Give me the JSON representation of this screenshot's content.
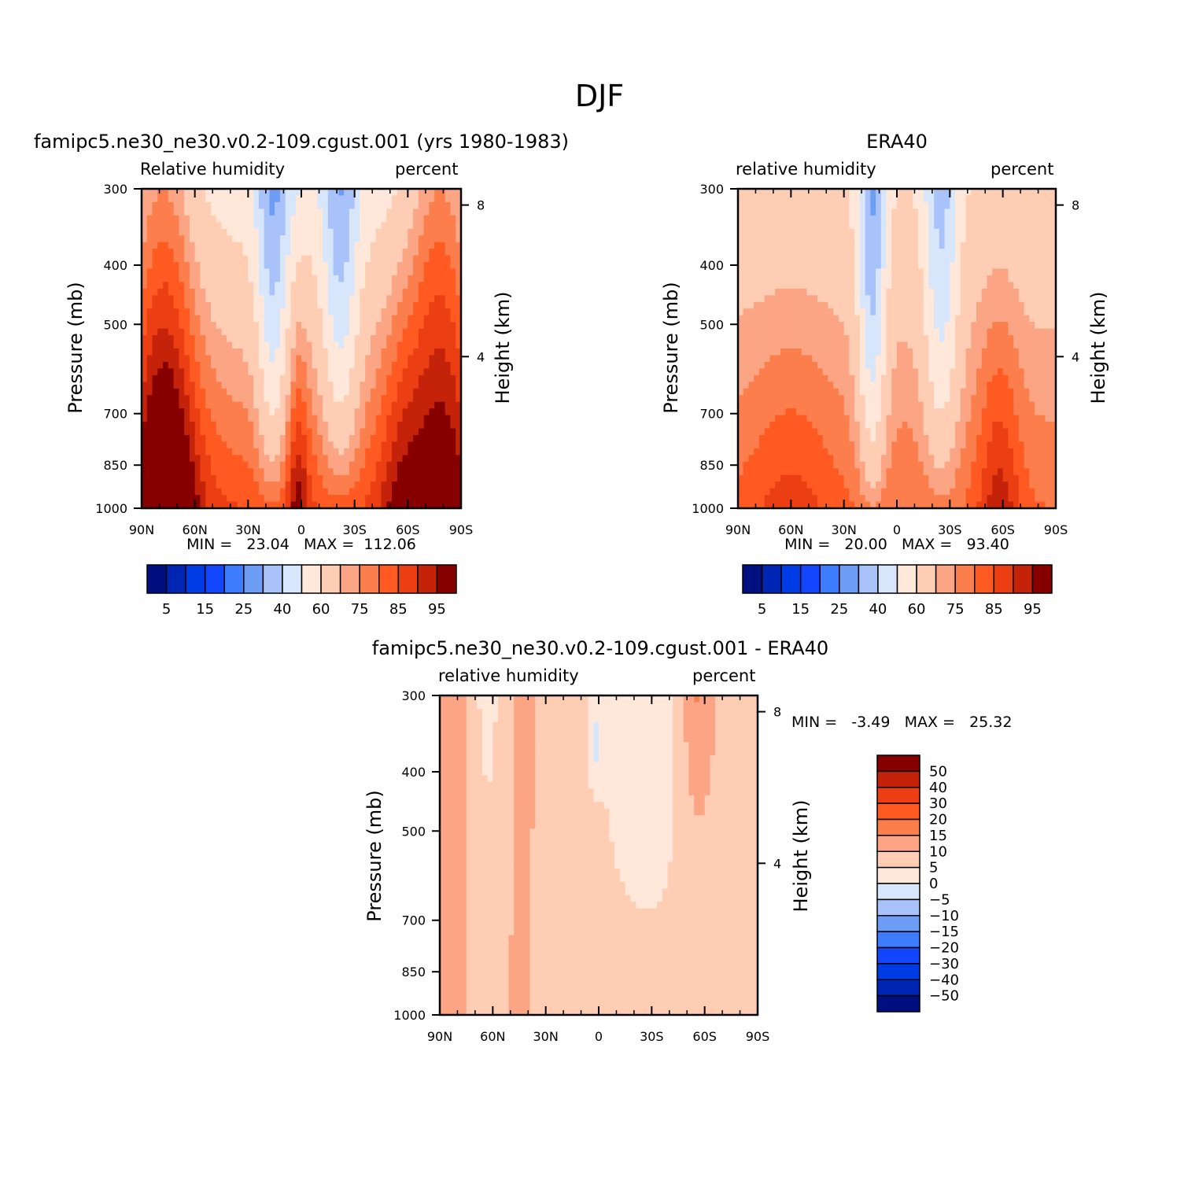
{
  "figure_title": "DJF",
  "colors": {
    "rh_palette": [
      "#000f7f",
      "#0024b4",
      "#003ce6",
      "#1446ff",
      "#3d7bff",
      "#6d9df5",
      "#a9c3fa",
      "#d7e6fb",
      "#ffe8d9",
      "#ffcdb4",
      "#fca584",
      "#fc7e4c",
      "#ff5a22",
      "#ec3e13",
      "#c4230a",
      "#870000"
    ],
    "diff_palette": [
      "#000f7f",
      "#0024b4",
      "#003ce6",
      "#1446ff",
      "#3d7bff",
      "#6d9df5",
      "#a9c3fa",
      "#d7e6fb",
      "#ffe8d9",
      "#ffcdb4",
      "#fca584",
      "#fc7e4c",
      "#ff5a22",
      "#ec3e13",
      "#c4230a",
      "#870000"
    ]
  },
  "chart_data": [
    {
      "type": "contour",
      "title": "famipc5.ne30_ne30.v0.2-109.cgust.001 (yrs 1980-1983)",
      "left_label": "Relative humidity",
      "right_label": "percent",
      "xlabel": "",
      "ylabel": "Pressure (mb)",
      "right_axis_label": "Height (km)",
      "x_ticks": [
        "90N",
        "60N",
        "30N",
        "0",
        "30S",
        "60S",
        "90S"
      ],
      "y_ticks": [
        "300",
        "400",
        "500",
        "700",
        "850",
        "1000"
      ],
      "right_ticks": [
        "8",
        "4"
      ],
      "min_label": "MIN =",
      "min_value": "23.04",
      "max_label": "MAX =",
      "max_value": "112.06",
      "colorbar_labels": [
        "5",
        "15",
        "25",
        "40",
        "60",
        "75",
        "85",
        "95"
      ],
      "field_id": "model"
    },
    {
      "type": "contour",
      "title": "ERA40",
      "left_label": "relative humidity",
      "right_label": "percent",
      "xlabel": "",
      "ylabel": "Pressure (mb)",
      "right_axis_label": "Height (km)",
      "x_ticks": [
        "90N",
        "60N",
        "30N",
        "0",
        "30S",
        "60S",
        "90S"
      ],
      "y_ticks": [
        "300",
        "400",
        "500",
        "700",
        "850",
        "1000"
      ],
      "right_ticks": [
        "8",
        "4"
      ],
      "min_label": "MIN =",
      "min_value": "20.00",
      "max_label": "MAX =",
      "max_value": "93.40",
      "colorbar_labels": [
        "5",
        "15",
        "25",
        "40",
        "60",
        "75",
        "85",
        "95"
      ],
      "field_id": "obs"
    },
    {
      "type": "contour",
      "title": "famipc5.ne30_ne30.v0.2-109.cgust.001 - ERA40",
      "left_label": "relative humidity",
      "right_label": "percent",
      "xlabel": "",
      "ylabel": "Pressure (mb)",
      "right_axis_label": "Height (km)",
      "x_ticks": [
        "90N",
        "60N",
        "30N",
        "0",
        "30S",
        "60S",
        "90S"
      ],
      "y_ticks": [
        "300",
        "400",
        "500",
        "700",
        "850",
        "1000"
      ],
      "right_ticks": [
        "8",
        "4"
      ],
      "min_label": "MIN =",
      "min_value": "-3.49",
      "max_label": "MAX =",
      "max_value": "25.32",
      "colorbar_labels": [
        "50",
        "40",
        "30",
        "20",
        "15",
        "10",
        "5",
        "0",
        "-5",
        "-10",
        "-15",
        "-20",
        "-30",
        "-40",
        "-50"
      ],
      "field_id": "diff"
    }
  ]
}
